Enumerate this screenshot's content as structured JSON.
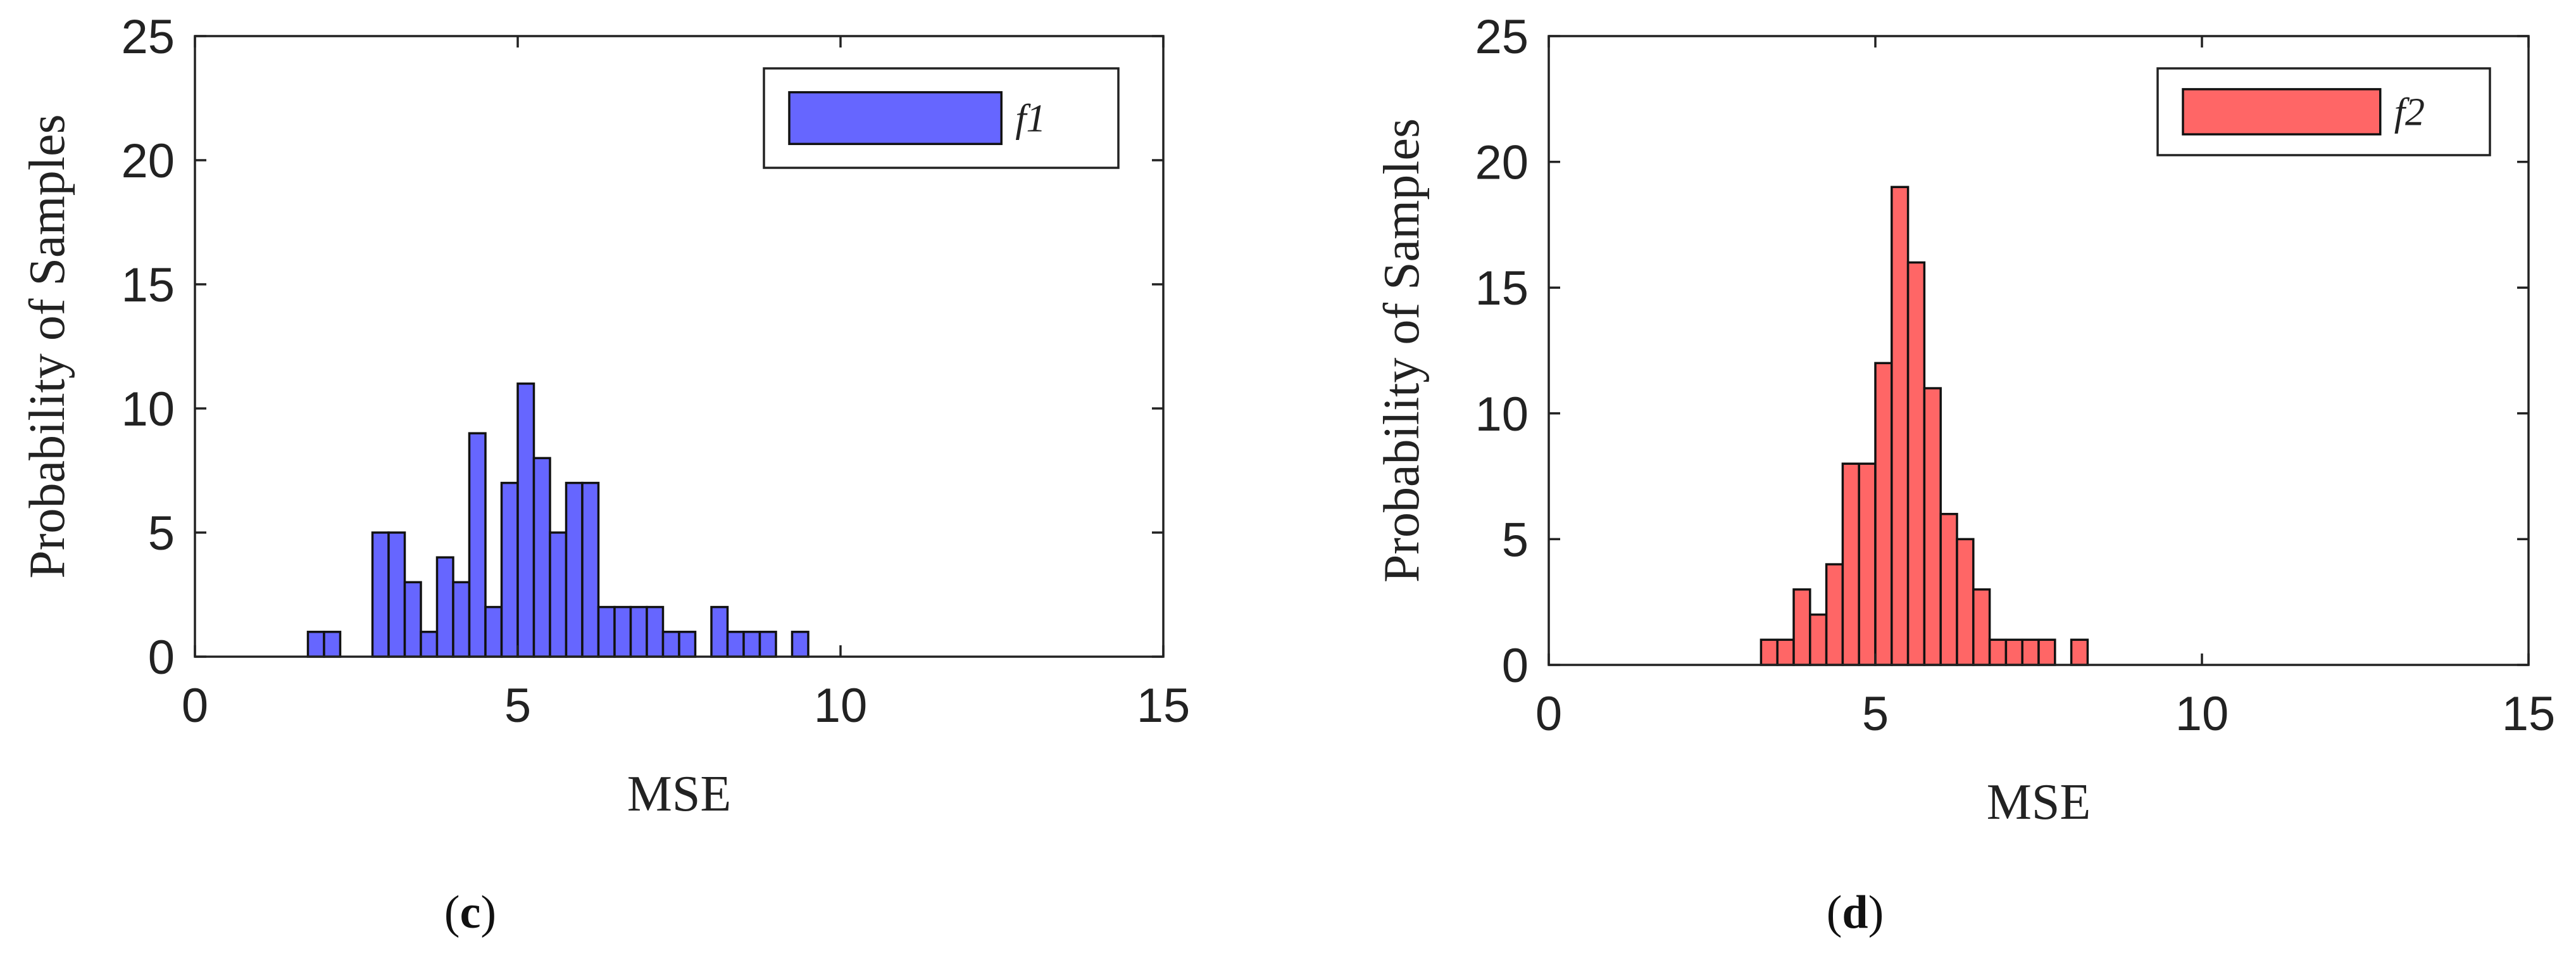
{
  "chart_data": [
    {
      "type": "bar",
      "panel_label": "(c)",
      "panel_letter": "c",
      "xlabel": "MSE",
      "ylabel": "Probability of Samples",
      "xlim": [
        0,
        15
      ],
      "ylim": [
        0,
        25
      ],
      "xticks": [
        "0",
        "5",
        "10",
        "15"
      ],
      "yticks": [
        "0",
        "5",
        "10",
        "15",
        "20",
        "25"
      ],
      "bin_width": 0.25,
      "bin_start": 1.75,
      "values": [
        1,
        1,
        0,
        0,
        5,
        5,
        3,
        1,
        4,
        3,
        9,
        2,
        7,
        11,
        8,
        5,
        7,
        7,
        2,
        2,
        2,
        2,
        1,
        1,
        0,
        2,
        1,
        1,
        1,
        0,
        1
      ],
      "legend": {
        "label": "f1",
        "position": "top-right"
      },
      "color": "#6666ff",
      "grid": false
    },
    {
      "type": "bar",
      "panel_label": "(d)",
      "panel_letter": "d",
      "xlabel": "MSE",
      "ylabel": "Probability of Samples",
      "xlim": [
        0,
        15
      ],
      "ylim": [
        0,
        25
      ],
      "xticks": [
        "0",
        "5",
        "10",
        "15"
      ],
      "yticks": [
        "0",
        "5",
        "10",
        "15",
        "20",
        "25"
      ],
      "bin_width": 0.25,
      "bin_start": 3.25,
      "values": [
        1,
        1,
        3,
        2,
        4,
        8,
        8,
        12,
        19,
        16,
        11,
        6,
        5,
        3,
        1,
        1,
        1,
        1,
        0,
        1
      ],
      "legend": {
        "label": "f2",
        "position": "top-right"
      },
      "color": "#ff6666",
      "grid": false
    }
  ]
}
